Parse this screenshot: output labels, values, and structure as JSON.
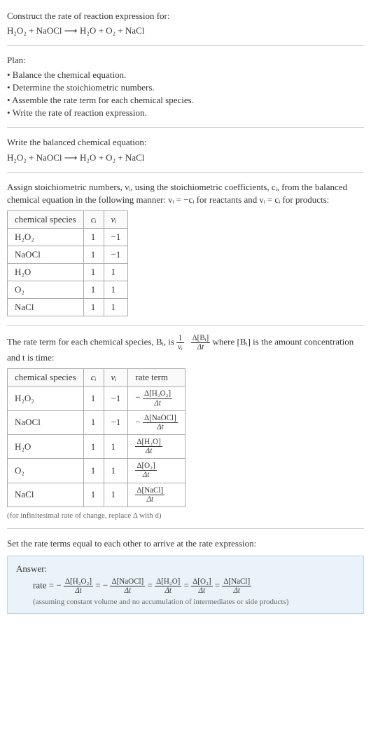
{
  "header": {
    "prompt": "Construct the rate of reaction expression for:",
    "equation_lhs": "H₂O₂ + NaOCl",
    "equation_rhs": "H₂O + O₂ + NaCl"
  },
  "plan": {
    "title": "Plan:",
    "items": [
      "• Balance the chemical equation.",
      "• Determine the stoichiometric numbers.",
      "• Assemble the rate term for each chemical species.",
      "• Write the rate of reaction expression."
    ]
  },
  "balanced": {
    "title": "Write the balanced chemical equation:",
    "equation_lhs": "H₂O₂ + NaOCl",
    "equation_rhs": "H₂O + O₂ + NaCl"
  },
  "stoich_text": {
    "para": "Assign stoichiometric numbers, νᵢ, using the stoichiometric coefficients, cᵢ, from the balanced chemical equation in the following manner: νᵢ = −cᵢ for reactants and νᵢ = cᵢ for products:"
  },
  "stoich_table": {
    "columns": [
      "chemical species",
      "cᵢ",
      "νᵢ"
    ],
    "rows": [
      [
        "H₂O₂",
        "1",
        "−1"
      ],
      [
        "NaOCl",
        "1",
        "−1"
      ],
      [
        "H₂O",
        "1",
        "1"
      ],
      [
        "O₂",
        "1",
        "1"
      ],
      [
        "NaCl",
        "1",
        "1"
      ]
    ],
    "col_widths": [
      "120px",
      "40px",
      "40px"
    ]
  },
  "rate_term_text": {
    "pre": "The rate term for each chemical species, Bᵢ, is ",
    "post": " where [Bᵢ] is the amount concentration and t is time:",
    "frac1_num": "1",
    "frac1_den": "νᵢ",
    "frac2_num": "Δ[Bᵢ]",
    "frac2_den": "Δt"
  },
  "rate_table": {
    "columns": [
      "chemical species",
      "cᵢ",
      "νᵢ",
      "rate term"
    ],
    "rows": [
      {
        "sp": "H₂O₂",
        "c": "1",
        "nu": "−1",
        "sign": "−",
        "num": "Δ[H₂O₂]",
        "den": "Δt"
      },
      {
        "sp": "NaOCl",
        "c": "1",
        "nu": "−1",
        "sign": "−",
        "num": "Δ[NaOCl]",
        "den": "Δt"
      },
      {
        "sp": "H₂O",
        "c": "1",
        "nu": "1",
        "sign": "",
        "num": "Δ[H₂O]",
        "den": "Δt"
      },
      {
        "sp": "O₂",
        "c": "1",
        "nu": "1",
        "sign": "",
        "num": "Δ[O₂]",
        "den": "Δt"
      },
      {
        "sp": "NaCl",
        "c": "1",
        "nu": "1",
        "sign": "",
        "num": "Δ[NaCl]",
        "den": "Δt"
      }
    ],
    "col_widths": [
      "120px",
      "40px",
      "40px",
      "90px"
    ],
    "note": "(for infinitesimal rate of change, replace Δ with d)"
  },
  "set_equal": "Set the rate terms equal to each other to arrive at the rate expression:",
  "answer": {
    "label": "Answer:",
    "prefix": "rate = ",
    "terms": [
      {
        "sign": "−",
        "num": "Δ[H₂O₂]",
        "den": "Δt"
      },
      {
        "sign": "−",
        "num": "Δ[NaOCl]",
        "den": "Δt"
      },
      {
        "sign": "",
        "num": "Δ[H₂O]",
        "den": "Δt"
      },
      {
        "sign": "",
        "num": "Δ[O₂]",
        "den": "Δt"
      },
      {
        "sign": "",
        "num": "Δ[NaCl]",
        "den": "Δt"
      }
    ],
    "caption": "(assuming constant volume and no accumulation of intermediates or side products)"
  }
}
